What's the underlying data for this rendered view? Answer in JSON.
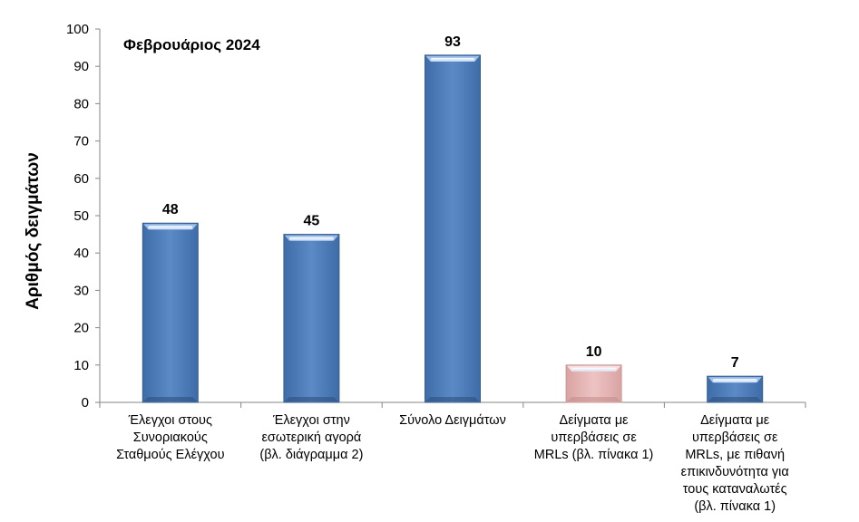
{
  "chart_data": {
    "type": "bar",
    "title": "Φεβρουάριος 2024",
    "xlabel": "",
    "ylabel": "Αριθμός δειγμάτων",
    "ylim": [
      0,
      100
    ],
    "yticks": [
      0,
      10,
      20,
      30,
      40,
      50,
      60,
      70,
      80,
      90,
      100
    ],
    "grid": false,
    "categories": [
      [
        "Έλεγχοι στους",
        "Συνοριακούς",
        "Σταθμούς Ελέγχου"
      ],
      [
        "Έλεγχοι στην",
        "εσωτερική αγορά",
        "(βλ. διάγραμμα 2)"
      ],
      [
        "Σύνολο Δειγμάτων"
      ],
      [
        "Δείγματα με",
        "υπερβάσεις σε",
        "MRLs (βλ. πίνακα 1)"
      ],
      [
        "Δείγματα με",
        "υπερβάσεις σε",
        "MRLs, με πιθανή",
        "επικινδυνότητα για",
        "τους καταναλωτές",
        "(βλ. πίνακα 1)"
      ]
    ],
    "values": [
      48,
      45,
      93,
      10,
      7
    ],
    "data_labels": [
      "48",
      "45",
      "93",
      "10",
      "7"
    ],
    "bar_colors": [
      "#4F81BD",
      "#4F81BD",
      "#4F81BD",
      "#E6B9B8",
      "#4F81BD"
    ]
  }
}
